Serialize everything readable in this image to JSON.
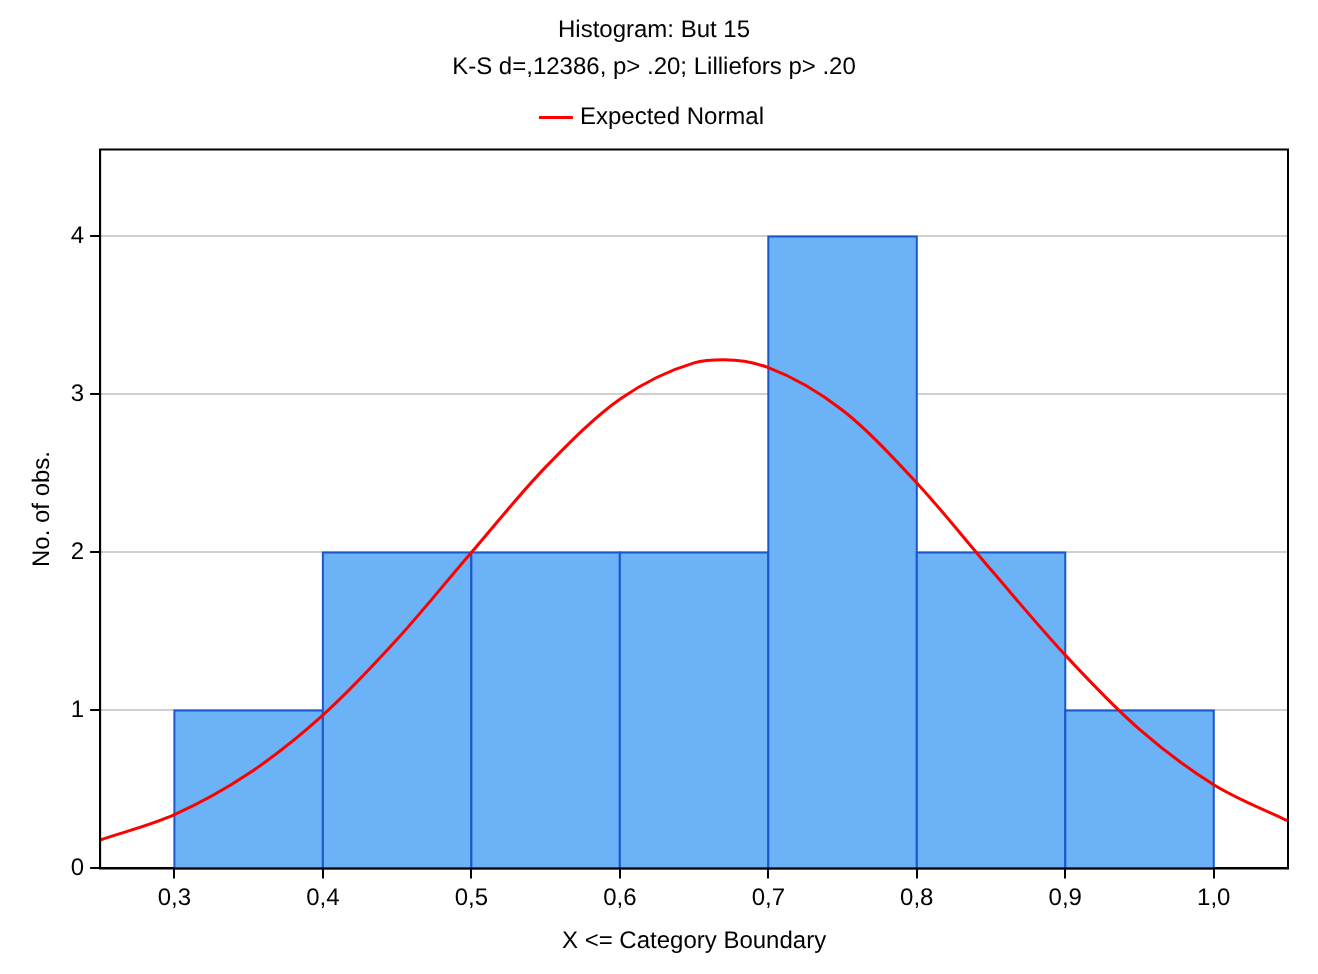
{
  "chart_data": {
    "type": "histogram",
    "title": "Histogram: But 15",
    "subtitle": "K-S d=,12386, p> .20; Lilliefors p> .20",
    "xlabel": "X <= Category Boundary",
    "ylabel": "No. of obs.",
    "bins": [
      0.3,
      0.4,
      0.5,
      0.6,
      0.7,
      0.8,
      0.9,
      1.0
    ],
    "values": [
      1,
      2,
      2,
      2,
      4,
      2,
      1
    ],
    "color": "#6cb2f6",
    "series": [
      {
        "type": "line",
        "name": "Expected Normal",
        "color": "#ff0000",
        "marker": "none",
        "x": [
          0.25,
          0.3,
          0.35,
          0.4,
          0.45,
          0.5,
          0.55,
          0.6,
          0.65,
          0.67,
          0.7,
          0.75,
          0.8,
          0.85,
          0.9,
          0.95,
          1.0,
          1.05
        ],
        "values": [
          0.18,
          0.34,
          0.6,
          0.97,
          1.45,
          2.0,
          2.54,
          2.97,
          3.2,
          3.22,
          3.17,
          2.9,
          2.44,
          1.89,
          1.35,
          0.88,
          0.53,
          0.3
        ]
      }
    ],
    "xlim": [
      0.25,
      1.05
    ],
    "xticks": [
      {
        "value": 0.3,
        "label": "0,3"
      },
      {
        "value": 0.4,
        "label": "0,4"
      },
      {
        "value": 0.5,
        "label": "0,5"
      },
      {
        "value": 0.6,
        "label": "0,6"
      },
      {
        "value": 0.7,
        "label": "0,7"
      },
      {
        "value": 0.8,
        "label": "0,8"
      },
      {
        "value": 0.9,
        "label": "0,9"
      },
      {
        "value": 1.0,
        "label": "1,0"
      }
    ],
    "ylim": [
      0,
      4.55
    ],
    "yticks": [
      0,
      1,
      2,
      3,
      4
    ],
    "grid": "y",
    "legend": "top"
  }
}
